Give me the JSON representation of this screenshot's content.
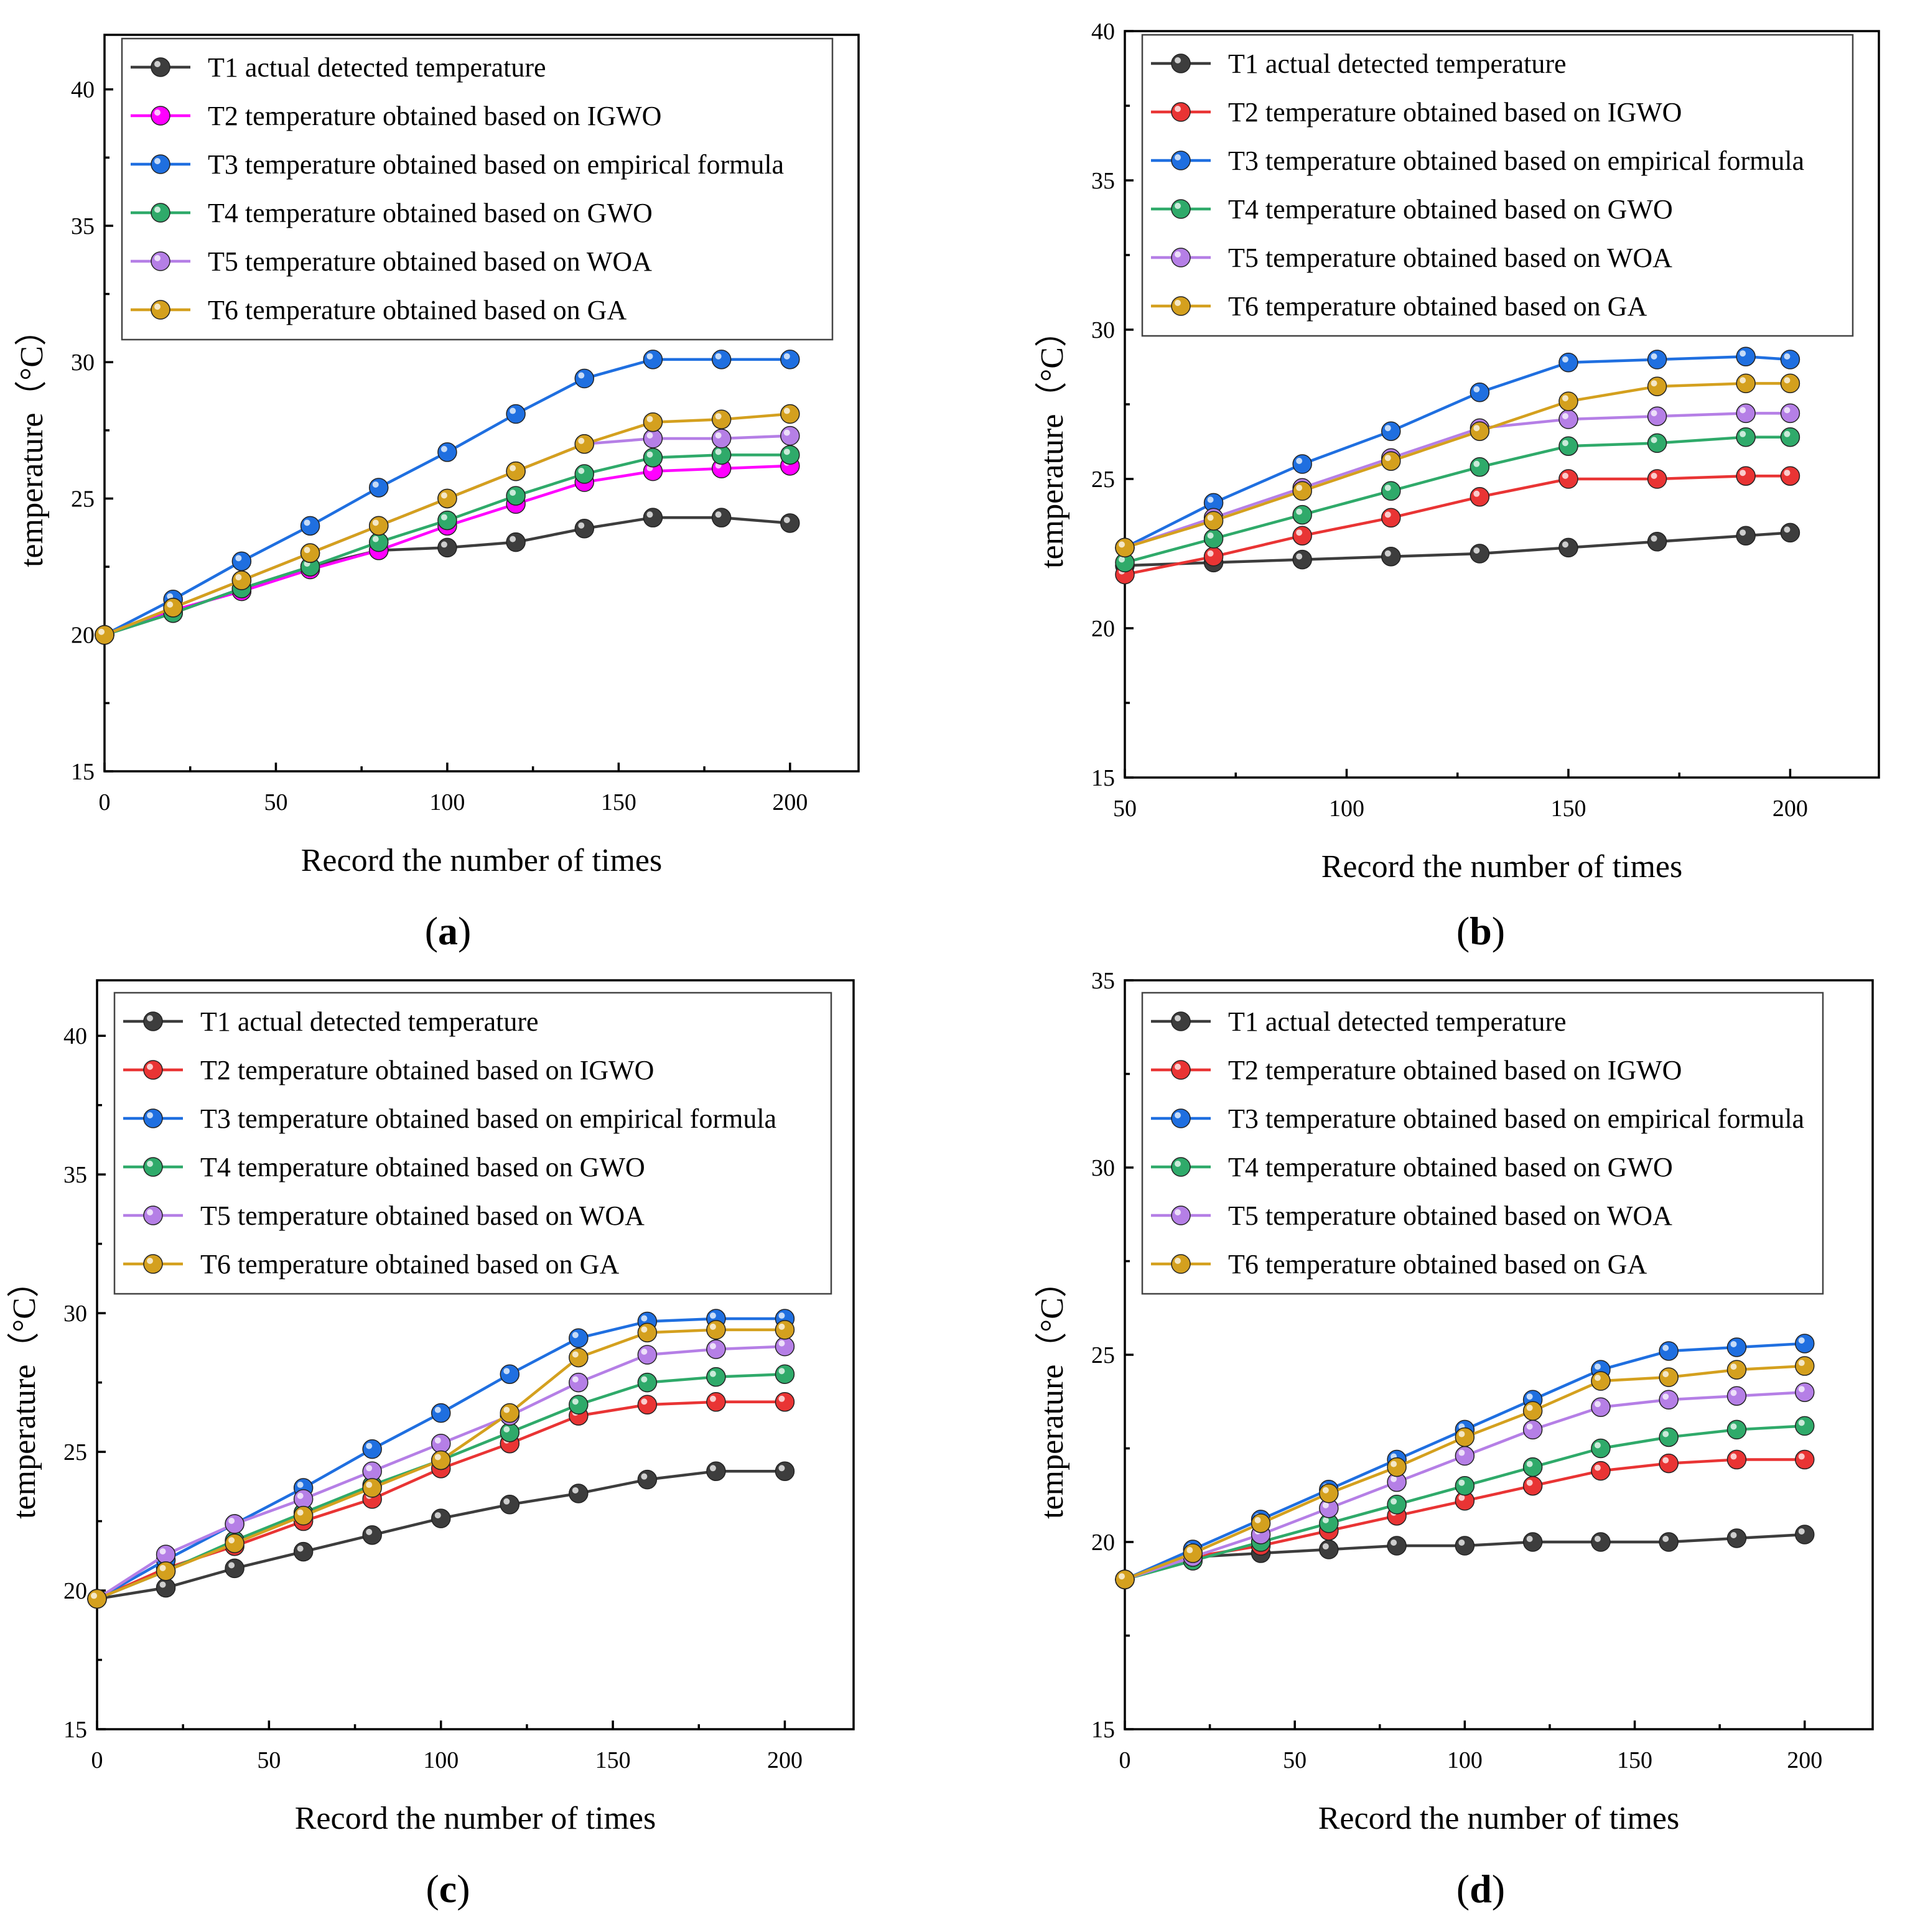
{
  "colors": {
    "T1": "#3d3d3d",
    "T2_a": "#ff00ff",
    "T2": "#e93434",
    "T3": "#1f6fe0",
    "T4": "#2faa6a",
    "T5": "#b57fe6",
    "T6": "#d4a01e"
  },
  "legend_labels": [
    "T1 actual detected temperature",
    "T2 temperature obtained based on IGWO",
    "T3 temperature obtained based on empirical formula",
    "T4 temperature obtained based on GWO",
    "T5 temperature obtained based on WOA",
    "T6 temperature obtained based on GA"
  ],
  "chart_data": [
    {
      "id": "a",
      "caption_letter": "a",
      "type": "line",
      "xlabel": "Record the number of times",
      "ylabel": "temperature（°C）",
      "xlim": [
        0,
        220
      ],
      "ylim": [
        15,
        42
      ],
      "xticks": [
        0,
        50,
        100,
        150,
        200
      ],
      "yticks": [
        15,
        20,
        25,
        30,
        35,
        40
      ],
      "legend_position": "top-left",
      "grid": false,
      "series": [
        {
          "name": "T1 actual detected temperature",
          "color_key": "T1",
          "x": [
            0,
            20,
            40,
            60,
            80,
            100,
            120,
            140,
            160,
            180,
            200
          ],
          "y": [
            20.0,
            20.8,
            21.7,
            22.5,
            23.1,
            23.2,
            23.4,
            23.9,
            24.3,
            24.3,
            24.1
          ]
        },
        {
          "name": "T2 temperature obtained based on IGWO",
          "color_key": "T2_a",
          "x": [
            0,
            20,
            40,
            60,
            80,
            100,
            120,
            140,
            160,
            180,
            200
          ],
          "y": [
            20.0,
            20.9,
            21.6,
            22.4,
            23.1,
            24.0,
            24.8,
            25.6,
            26.0,
            26.1,
            26.2
          ]
        },
        {
          "name": "T3 temperature obtained based on empirical formula",
          "color_key": "T3",
          "x": [
            0,
            20,
            40,
            60,
            80,
            100,
            120,
            140,
            160,
            180,
            200
          ],
          "y": [
            20.0,
            21.3,
            22.7,
            24.0,
            25.4,
            26.7,
            28.1,
            29.4,
            30.1,
            30.1,
            30.1
          ]
        },
        {
          "name": "T4 temperature obtained based on GWO",
          "color_key": "T4",
          "x": [
            0,
            20,
            40,
            60,
            80,
            100,
            120,
            140,
            160,
            180,
            200
          ],
          "y": [
            20.0,
            20.8,
            21.7,
            22.5,
            23.4,
            24.2,
            25.1,
            25.9,
            26.5,
            26.6,
            26.6
          ]
        },
        {
          "name": "T5 temperature obtained based on WOA",
          "color_key": "T5",
          "x": [
            0,
            20,
            40,
            60,
            80,
            100,
            120,
            140,
            160,
            180,
            200
          ],
          "y": [
            20.0,
            21.0,
            22.0,
            23.0,
            24.0,
            25.0,
            26.0,
            27.0,
            27.2,
            27.2,
            27.3
          ]
        },
        {
          "name": "T6 temperature obtained based on GA",
          "color_key": "T6",
          "x": [
            0,
            20,
            40,
            60,
            80,
            100,
            120,
            140,
            160,
            180,
            200
          ],
          "y": [
            20.0,
            21.0,
            22.0,
            23.0,
            24.0,
            25.0,
            26.0,
            27.0,
            27.8,
            27.9,
            28.1
          ]
        }
      ]
    },
    {
      "id": "b",
      "caption_letter": "b",
      "type": "line",
      "xlabel": "Record the number of times",
      "ylabel": "temperature（°C）",
      "xlim": [
        50,
        220
      ],
      "ylim": [
        15,
        40
      ],
      "xticks": [
        50,
        100,
        150,
        200
      ],
      "yticks": [
        15,
        20,
        25,
        30,
        35,
        40
      ],
      "legend_position": "top-left",
      "grid": false,
      "series": [
        {
          "name": "T1 actual detected temperature",
          "color_key": "T1",
          "x": [
            50,
            70,
            90,
            110,
            130,
            150,
            170,
            190,
            200
          ],
          "y": [
            22.1,
            22.2,
            22.3,
            22.4,
            22.5,
            22.7,
            22.9,
            23.1,
            23.2
          ]
        },
        {
          "name": "T2 temperature obtained based on IGWO",
          "color_key": "T2",
          "x": [
            50,
            70,
            90,
            110,
            130,
            150,
            170,
            190,
            200
          ],
          "y": [
            21.8,
            22.4,
            23.1,
            23.7,
            24.4,
            25.0,
            25.0,
            25.1,
            25.1
          ]
        },
        {
          "name": "T3 temperature obtained based on empirical formula",
          "color_key": "T3",
          "x": [
            50,
            70,
            90,
            110,
            130,
            150,
            170,
            190,
            200
          ],
          "y": [
            22.7,
            24.2,
            25.5,
            26.6,
            27.9,
            28.9,
            29.0,
            29.1,
            29.0
          ]
        },
        {
          "name": "T4 temperature obtained based on GWO",
          "color_key": "T4",
          "x": [
            50,
            70,
            90,
            110,
            130,
            150,
            170,
            190,
            200
          ],
          "y": [
            22.2,
            23.0,
            23.8,
            24.6,
            25.4,
            26.1,
            26.2,
            26.4,
            26.4
          ]
        },
        {
          "name": "T5 temperature obtained based on WOA",
          "color_key": "T5",
          "x": [
            50,
            70,
            90,
            110,
            130,
            150,
            170,
            190,
            200
          ],
          "y": [
            22.7,
            23.7,
            24.7,
            25.7,
            26.7,
            27.0,
            27.1,
            27.2,
            27.2
          ]
        },
        {
          "name": "T6 temperature obtained based on GA",
          "color_key": "T6",
          "x": [
            50,
            70,
            90,
            110,
            130,
            150,
            170,
            190,
            200
          ],
          "y": [
            22.7,
            23.6,
            24.6,
            25.6,
            26.6,
            27.6,
            28.1,
            28.2,
            28.2
          ]
        }
      ]
    },
    {
      "id": "c",
      "caption_letter": "c",
      "type": "line",
      "xlabel": "Record the number of times",
      "ylabel": "temperature（°C）",
      "xlim": [
        0,
        220
      ],
      "ylim": [
        15,
        42
      ],
      "xticks": [
        0,
        50,
        100,
        150,
        200
      ],
      "yticks": [
        15,
        20,
        25,
        30,
        35,
        40
      ],
      "legend_position": "top-left",
      "grid": false,
      "series": [
        {
          "name": "T1 actual detected temperature",
          "color_key": "T1",
          "x": [
            0,
            20,
            40,
            60,
            80,
            100,
            120,
            140,
            160,
            180,
            200
          ],
          "y": [
            19.7,
            20.1,
            20.8,
            21.4,
            22.0,
            22.6,
            23.1,
            23.5,
            24.0,
            24.3,
            24.3
          ]
        },
        {
          "name": "T2 temperature obtained based on IGWO",
          "color_key": "T2",
          "x": [
            0,
            20,
            40,
            60,
            80,
            100,
            120,
            140,
            160,
            180,
            200
          ],
          "y": [
            19.7,
            20.8,
            21.6,
            22.5,
            23.3,
            24.4,
            25.3,
            26.3,
            26.7,
            26.8,
            26.8
          ]
        },
        {
          "name": "T3 temperature obtained based on empirical formula",
          "color_key": "T3",
          "x": [
            0,
            20,
            40,
            60,
            80,
            100,
            120,
            140,
            160,
            180,
            200
          ],
          "y": [
            19.7,
            21.1,
            22.4,
            23.7,
            25.1,
            26.4,
            27.8,
            29.1,
            29.7,
            29.8,
            29.8
          ]
        },
        {
          "name": "T4 temperature obtained based on GWO",
          "color_key": "T4",
          "x": [
            0,
            20,
            40,
            60,
            80,
            100,
            120,
            140,
            160,
            180,
            200
          ],
          "y": [
            19.7,
            20.7,
            21.8,
            22.8,
            23.8,
            24.7,
            25.7,
            26.7,
            27.5,
            27.7,
            27.8
          ]
        },
        {
          "name": "T5 temperature obtained based on WOA",
          "color_key": "T5",
          "x": [
            0,
            20,
            40,
            60,
            80,
            100,
            120,
            140,
            160,
            180,
            200
          ],
          "y": [
            19.7,
            21.3,
            22.4,
            23.3,
            24.3,
            25.3,
            26.3,
            27.5,
            28.5,
            28.7,
            28.8
          ]
        },
        {
          "name": "T6 temperature obtained based on GA",
          "color_key": "T6",
          "x": [
            0,
            20,
            40,
            60,
            80,
            100,
            120,
            140,
            160,
            180,
            200
          ],
          "y": [
            19.7,
            20.7,
            21.7,
            22.7,
            23.7,
            24.7,
            26.4,
            28.4,
            29.3,
            29.4,
            29.4
          ]
        }
      ]
    },
    {
      "id": "d",
      "caption_letter": "d",
      "type": "line",
      "xlabel": "Record the number of times",
      "ylabel": "temperature（°C）",
      "xlim": [
        0,
        220
      ],
      "ylim": [
        15,
        35
      ],
      "xticks": [
        0,
        50,
        100,
        150,
        200
      ],
      "yticks": [
        15,
        20,
        25,
        30,
        35
      ],
      "legend_position": "top-left",
      "grid": false,
      "series": [
        {
          "name": "T1 actual detected temperature",
          "color_key": "T1",
          "x": [
            0,
            20,
            40,
            60,
            80,
            100,
            120,
            140,
            160,
            180,
            200
          ],
          "y": [
            19.0,
            19.6,
            19.7,
            19.8,
            19.9,
            19.9,
            20.0,
            20.0,
            20.0,
            20.1,
            20.2
          ]
        },
        {
          "name": "T2 temperature obtained based on IGWO",
          "color_key": "T2",
          "x": [
            0,
            20,
            40,
            60,
            80,
            100,
            120,
            140,
            160,
            180,
            200
          ],
          "y": [
            19.0,
            19.6,
            19.9,
            20.3,
            20.7,
            21.1,
            21.5,
            21.9,
            22.1,
            22.2,
            22.2
          ]
        },
        {
          "name": "T3 temperature obtained based on empirical formula",
          "color_key": "T3",
          "x": [
            0,
            20,
            40,
            60,
            80,
            100,
            120,
            140,
            160,
            180,
            200
          ],
          "y": [
            19.0,
            19.8,
            20.6,
            21.4,
            22.2,
            23.0,
            23.8,
            24.6,
            25.1,
            25.2,
            25.3
          ]
        },
        {
          "name": "T4 temperature obtained based on GWO",
          "color_key": "T4",
          "x": [
            0,
            20,
            40,
            60,
            80,
            100,
            120,
            140,
            160,
            180,
            200
          ],
          "y": [
            19.0,
            19.5,
            20.0,
            20.5,
            21.0,
            21.5,
            22.0,
            22.5,
            22.8,
            23.0,
            23.1
          ]
        },
        {
          "name": "T5 temperature obtained based on WOA",
          "color_key": "T5",
          "x": [
            0,
            20,
            40,
            60,
            80,
            100,
            120,
            140,
            160,
            180,
            200
          ],
          "y": [
            19.0,
            19.6,
            20.2,
            20.9,
            21.6,
            22.3,
            23.0,
            23.6,
            23.8,
            23.9,
            24.0
          ]
        },
        {
          "name": "T6 temperature obtained based on GA",
          "color_key": "T6",
          "x": [
            0,
            20,
            40,
            60,
            80,
            100,
            120,
            140,
            160,
            180,
            200
          ],
          "y": [
            19.0,
            19.7,
            20.5,
            21.3,
            22.0,
            22.8,
            23.5,
            24.3,
            24.4,
            24.6,
            24.7
          ]
        }
      ]
    }
  ]
}
